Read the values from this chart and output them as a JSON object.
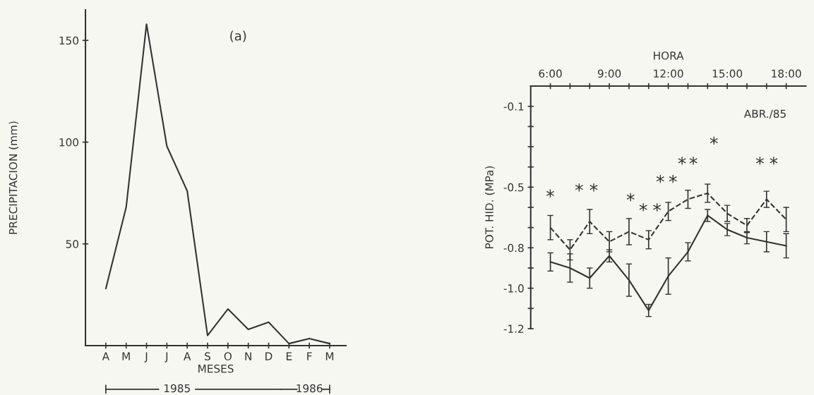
{
  "chart_data": [
    {
      "type": "line",
      "categories": [
        "A",
        "M",
        "J",
        "J",
        "A",
        "S",
        "O",
        "N",
        "D",
        "E",
        "F",
        "M"
      ],
      "series": [
        {
          "color": "#333333",
          "line_style": "solid",
          "values": [
            28,
            68,
            158,
            98,
            76,
            5,
            18,
            8,
            11.5,
            1,
            3.5,
            1
          ]
        }
      ],
      "ylim": [
        0,
        165
      ],
      "yticks": [
        50,
        100,
        150
      ],
      "xlabel": "MESES",
      "ylabel": "PRECIPITACION (mm)",
      "annotations": [
        "(a)",
        "1985",
        "1986"
      ]
    },
    {
      "type": "line",
      "x": [
        6,
        7,
        8,
        9,
        10,
        11,
        12,
        13,
        14,
        15,
        16,
        17,
        18
      ],
      "series": [
        {
          "color": "#333333",
          "line_style": "dashed",
          "values": [
            -0.7,
            -0.81,
            -0.67,
            -0.77,
            -0.72,
            -0.76,
            -0.62,
            -0.56,
            -0.53,
            -0.63,
            -0.69,
            -0.56,
            -0.66
          ],
          "errors": [
            0.06,
            0.05,
            0.06,
            0.05,
            0.065,
            0.045,
            0.045,
            0.045,
            0.045,
            0.04,
            0.035,
            0.04,
            0.06
          ]
        },
        {
          "color": "#333333",
          "line_style": "solid",
          "values": [
            -0.87,
            -0.9,
            -0.95,
            -0.84,
            -0.96,
            -1.11,
            -0.94,
            -0.82,
            -0.64,
            -0.71,
            -0.75,
            -0.77,
            -0.79
          ],
          "errors": [
            0.045,
            0.07,
            0.05,
            0.03,
            0.08,
            0.03,
            0.09,
            0.045,
            0.03,
            0.03,
            0.03,
            0.05,
            0.06
          ]
        }
      ],
      "xlim": [
        5,
        19
      ],
      "xticks": [
        {
          "value": 6,
          "label": "6:00"
        },
        {
          "value": 7,
          "label": null
        },
        {
          "value": 8,
          "label": null
        },
        {
          "value": 9,
          "label": "9:00"
        },
        {
          "value": 10,
          "label": null
        },
        {
          "value": 11,
          "label": null
        },
        {
          "value": 12,
          "label": "12:00"
        },
        {
          "value": 13,
          "label": null
        },
        {
          "value": 14,
          "label": null
        },
        {
          "value": 15,
          "label": "15:00"
        },
        {
          "value": 16,
          "label": null
        },
        {
          "value": 17,
          "label": null
        },
        {
          "value": 18,
          "label": "18:00"
        }
      ],
      "ylim": [
        -1.2,
        0.0
      ],
      "yticks": [
        -0.1,
        {
          "value": -0.2,
          "label": null
        },
        {
          "value": -0.3,
          "label": null
        },
        {
          "value": -0.4,
          "label": null
        },
        -0.5,
        {
          "value": -0.6,
          "label": null
        },
        {
          "value": -0.7,
          "label": null
        },
        -0.8,
        {
          "value": -0.9,
          "label": null
        },
        {
          "value": -1.0,
          "label": "-1.0"
        },
        {
          "value": -1.1,
          "label": null
        },
        -1.2
      ],
      "xlabel": "HORA",
      "ylabel": "POT. HID. (MPa)",
      "annotations": [
        "ABR./85",
        "*",
        "*",
        "*",
        "*",
        "*",
        "*",
        "*",
        "*",
        "*",
        "*",
        "*",
        "*",
        "*"
      ]
    }
  ]
}
